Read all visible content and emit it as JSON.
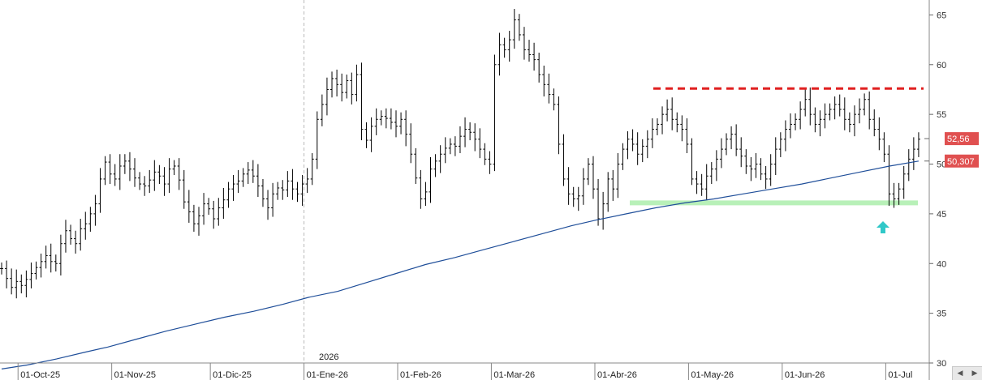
{
  "chart_data": {
    "type": "ohlc",
    "title": "",
    "xlabel": "",
    "ylabel": "",
    "ylim": [
      30,
      66.5
    ],
    "y_ticks": [
      30,
      35,
      40,
      45,
      50,
      55,
      60,
      65
    ],
    "x_ticks": [
      "01-Oct-25",
      "01-Nov-25",
      "01-Dic-25",
      "01-Ene-26",
      "01-Feb-26",
      "01-Mar-26",
      "01-Abr-26",
      "01-May-26",
      "01-Jun-26",
      "01-Jul"
    ],
    "year_marker": "2026",
    "last_price_label": "52,56",
    "ma_label": "50,307",
    "last_price": 52.56,
    "ma_value": 50.307,
    "resistance_level": 57.6,
    "support_level": 46.1,
    "colors": {
      "bars": "#000000",
      "moving_average": "#1f4e99",
      "resistance": "#e02020",
      "support": "#b8f0b8",
      "price_tag": "#e05050",
      "arrow": "#30c8c8"
    },
    "price_closes": [
      39.5,
      38.5,
      37.6,
      38.2,
      37.8,
      38.4,
      39.0,
      39.6,
      40.2,
      40.8,
      40.2,
      40.0,
      42.0,
      43.3,
      42.5,
      42.0,
      43.5,
      44.0,
      45.0,
      46.0,
      48.5,
      50.2,
      49.0,
      48.5,
      49.8,
      50.3,
      49.5,
      48.6,
      48.0,
      47.8,
      48.4,
      49.2,
      48.8,
      48.0,
      49.5,
      49.8,
      48.4,
      46.2,
      45.2,
      44.0,
      44.8,
      46.0,
      45.5,
      44.5,
      45.6,
      46.4,
      47.5,
      48.0,
      48.3,
      49.0,
      49.4,
      48.8,
      47.8,
      46.5,
      45.6,
      47.0,
      47.6,
      47.4,
      48.3,
      47.5,
      47.0,
      48.0,
      48.5,
      50.5,
      54.5,
      56.0,
      57.5,
      58.6,
      58.0,
      57.2,
      58.4,
      57.0,
      59.0,
      53.5,
      52.4,
      53.8,
      54.5,
      54.8,
      54.6,
      54.2,
      53.8,
      54.5,
      53.0,
      51.0,
      48.6,
      46.5,
      47.2,
      49.5,
      50.3,
      51.0,
      51.6,
      52.0,
      51.8,
      52.8,
      53.5,
      53.2,
      52.5,
      51.5,
      50.5,
      50.0,
      60.0,
      62.0,
      61.5,
      62.5,
      64.5,
      63.0,
      61.5,
      61.0,
      60.5,
      59.0,
      58.0,
      57.0,
      56.0,
      52.0,
      48.5,
      47.0,
      46.5,
      46.8,
      48.5,
      50.0,
      47.5,
      44.5,
      46.0,
      48.5,
      47.5,
      50.0,
      51.5,
      52.5,
      52.0,
      51.0,
      51.8,
      52.5,
      53.5,
      54.0,
      55.0,
      55.5,
      54.5,
      54.0,
      53.5,
      52.0,
      48.5,
      48.0,
      47.5,
      48.8,
      49.5,
      50.5,
      51.5,
      52.5,
      53.0,
      51.5,
      50.8,
      49.8,
      49.5,
      50.0,
      49.0,
      48.5,
      50.0,
      51.5,
      52.5,
      53.5,
      54.0,
      54.5,
      55.5,
      56.5,
      55.0,
      54.0,
      54.5,
      55.0,
      55.5,
      56.0,
      55.5,
      54.5,
      54.0,
      55.0,
      55.5,
      56.5,
      54.5,
      53.5,
      52.5,
      51.0,
      47.0,
      46.5,
      47.5,
      49.0,
      50.5,
      51.5,
      52.5
    ],
    "moving_average": [
      {
        "x": 1,
        "y": 29.4
      },
      {
        "x": 8,
        "y": 29.8
      },
      {
        "x": 16,
        "y": 30.4
      },
      {
        "x": 24,
        "y": 31.1
      },
      {
        "x": 30,
        "y": 31.6
      },
      {
        "x": 38,
        "y": 32.4
      },
      {
        "x": 46,
        "y": 33.2
      },
      {
        "x": 54,
        "y": 33.9
      },
      {
        "x": 62,
        "y": 34.6
      },
      {
        "x": 70,
        "y": 35.2
      },
      {
        "x": 78,
        "y": 35.9
      },
      {
        "x": 85,
        "y": 36.6
      },
      {
        "x": 93,
        "y": 37.2
      },
      {
        "x": 101,
        "y": 38.1
      },
      {
        "x": 109,
        "y": 39.0
      },
      {
        "x": 117,
        "y": 39.9
      },
      {
        "x": 125,
        "y": 40.6
      },
      {
        "x": 133,
        "y": 41.4
      },
      {
        "x": 141,
        "y": 42.2
      },
      {
        "x": 149,
        "y": 43.0
      },
      {
        "x": 157,
        "y": 43.8
      },
      {
        "x": 164,
        "y": 44.4
      },
      {
        "x": 172,
        "y": 45.0
      },
      {
        "x": 180,
        "y": 45.6
      },
      {
        "x": 188,
        "y": 46.1
      },
      {
        "x": 196,
        "y": 46.5
      },
      {
        "x": 204,
        "y": 47.0
      },
      {
        "x": 212,
        "y": 47.5
      },
      {
        "x": 220,
        "y": 48.0
      },
      {
        "x": 228,
        "y": 48.6
      },
      {
        "x": 236,
        "y": 49.2
      },
      {
        "x": 244,
        "y": 49.8
      },
      {
        "x": 252,
        "y": 50.3
      }
    ]
  }
}
